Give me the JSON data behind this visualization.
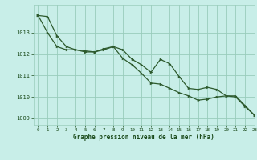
{
  "title": "Graphe pression niveau de la mer (hPa)",
  "bg_color": "#c8eee8",
  "grid_color": "#99ccbb",
  "line_color": "#2d5a2d",
  "tick_color": "#1a4a1a",
  "xlim": [
    -0.5,
    23
  ],
  "ylim": [
    1008.7,
    1014.3
  ],
  "yticks": [
    1009,
    1010,
    1011,
    1012,
    1013
  ],
  "xticks": [
    0,
    1,
    2,
    3,
    4,
    5,
    6,
    7,
    8,
    9,
    10,
    11,
    12,
    13,
    14,
    15,
    16,
    17,
    18,
    19,
    20,
    21,
    22,
    23
  ],
  "series1": [
    1013.8,
    1013.75,
    1012.85,
    1012.35,
    1012.2,
    1012.15,
    1012.1,
    1012.2,
    1012.35,
    1012.2,
    1011.75,
    1011.5,
    1011.15,
    1011.75,
    1011.55,
    1010.95,
    1010.4,
    1010.35,
    1010.45,
    1010.35,
    1010.05,
    1010.05,
    1009.6,
    1009.15
  ],
  "series2": [
    1013.8,
    1013.0,
    1012.35,
    1012.2,
    1012.2,
    1012.1,
    1012.1,
    1012.25,
    1012.35,
    1011.8,
    1011.5,
    1011.1,
    1010.65,
    1010.6,
    1010.4,
    1010.2,
    1010.05,
    1009.85,
    1009.9,
    1010.0,
    1010.05,
    1010.0,
    1009.55,
    1009.15
  ]
}
